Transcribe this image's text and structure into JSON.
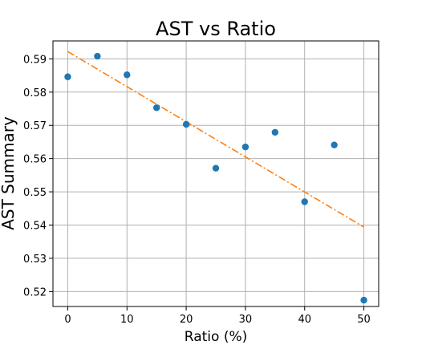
{
  "chart_data": {
    "type": "scatter",
    "title": "AST vs Ratio",
    "xlabel": "Ratio (%)",
    "ylabel": "AST Summary",
    "xlim": [
      -2.5,
      52.5
    ],
    "ylim": [
      0.5155,
      0.5954
    ],
    "xticks": [
      0,
      10,
      20,
      30,
      40,
      50
    ],
    "yticks": [
      0.52,
      0.53,
      0.54,
      0.55,
      0.56,
      0.57,
      0.58,
      0.59
    ],
    "grid": true,
    "series": [
      {
        "kind": "points",
        "color": "#1f77b4",
        "x": [
          0,
          5,
          10,
          15,
          20,
          25,
          30,
          35,
          40,
          45,
          50
        ],
        "y": [
          0.5846,
          0.5908,
          0.5852,
          0.5753,
          0.5703,
          0.5571,
          0.5635,
          0.5679,
          0.547,
          0.5641,
          0.5174
        ]
      },
      {
        "kind": "trend-line",
        "color": "#ff7f0e",
        "linestyle": "dash-dot",
        "x": [
          0,
          50
        ],
        "y": [
          0.5922,
          0.5394
        ]
      }
    ]
  }
}
